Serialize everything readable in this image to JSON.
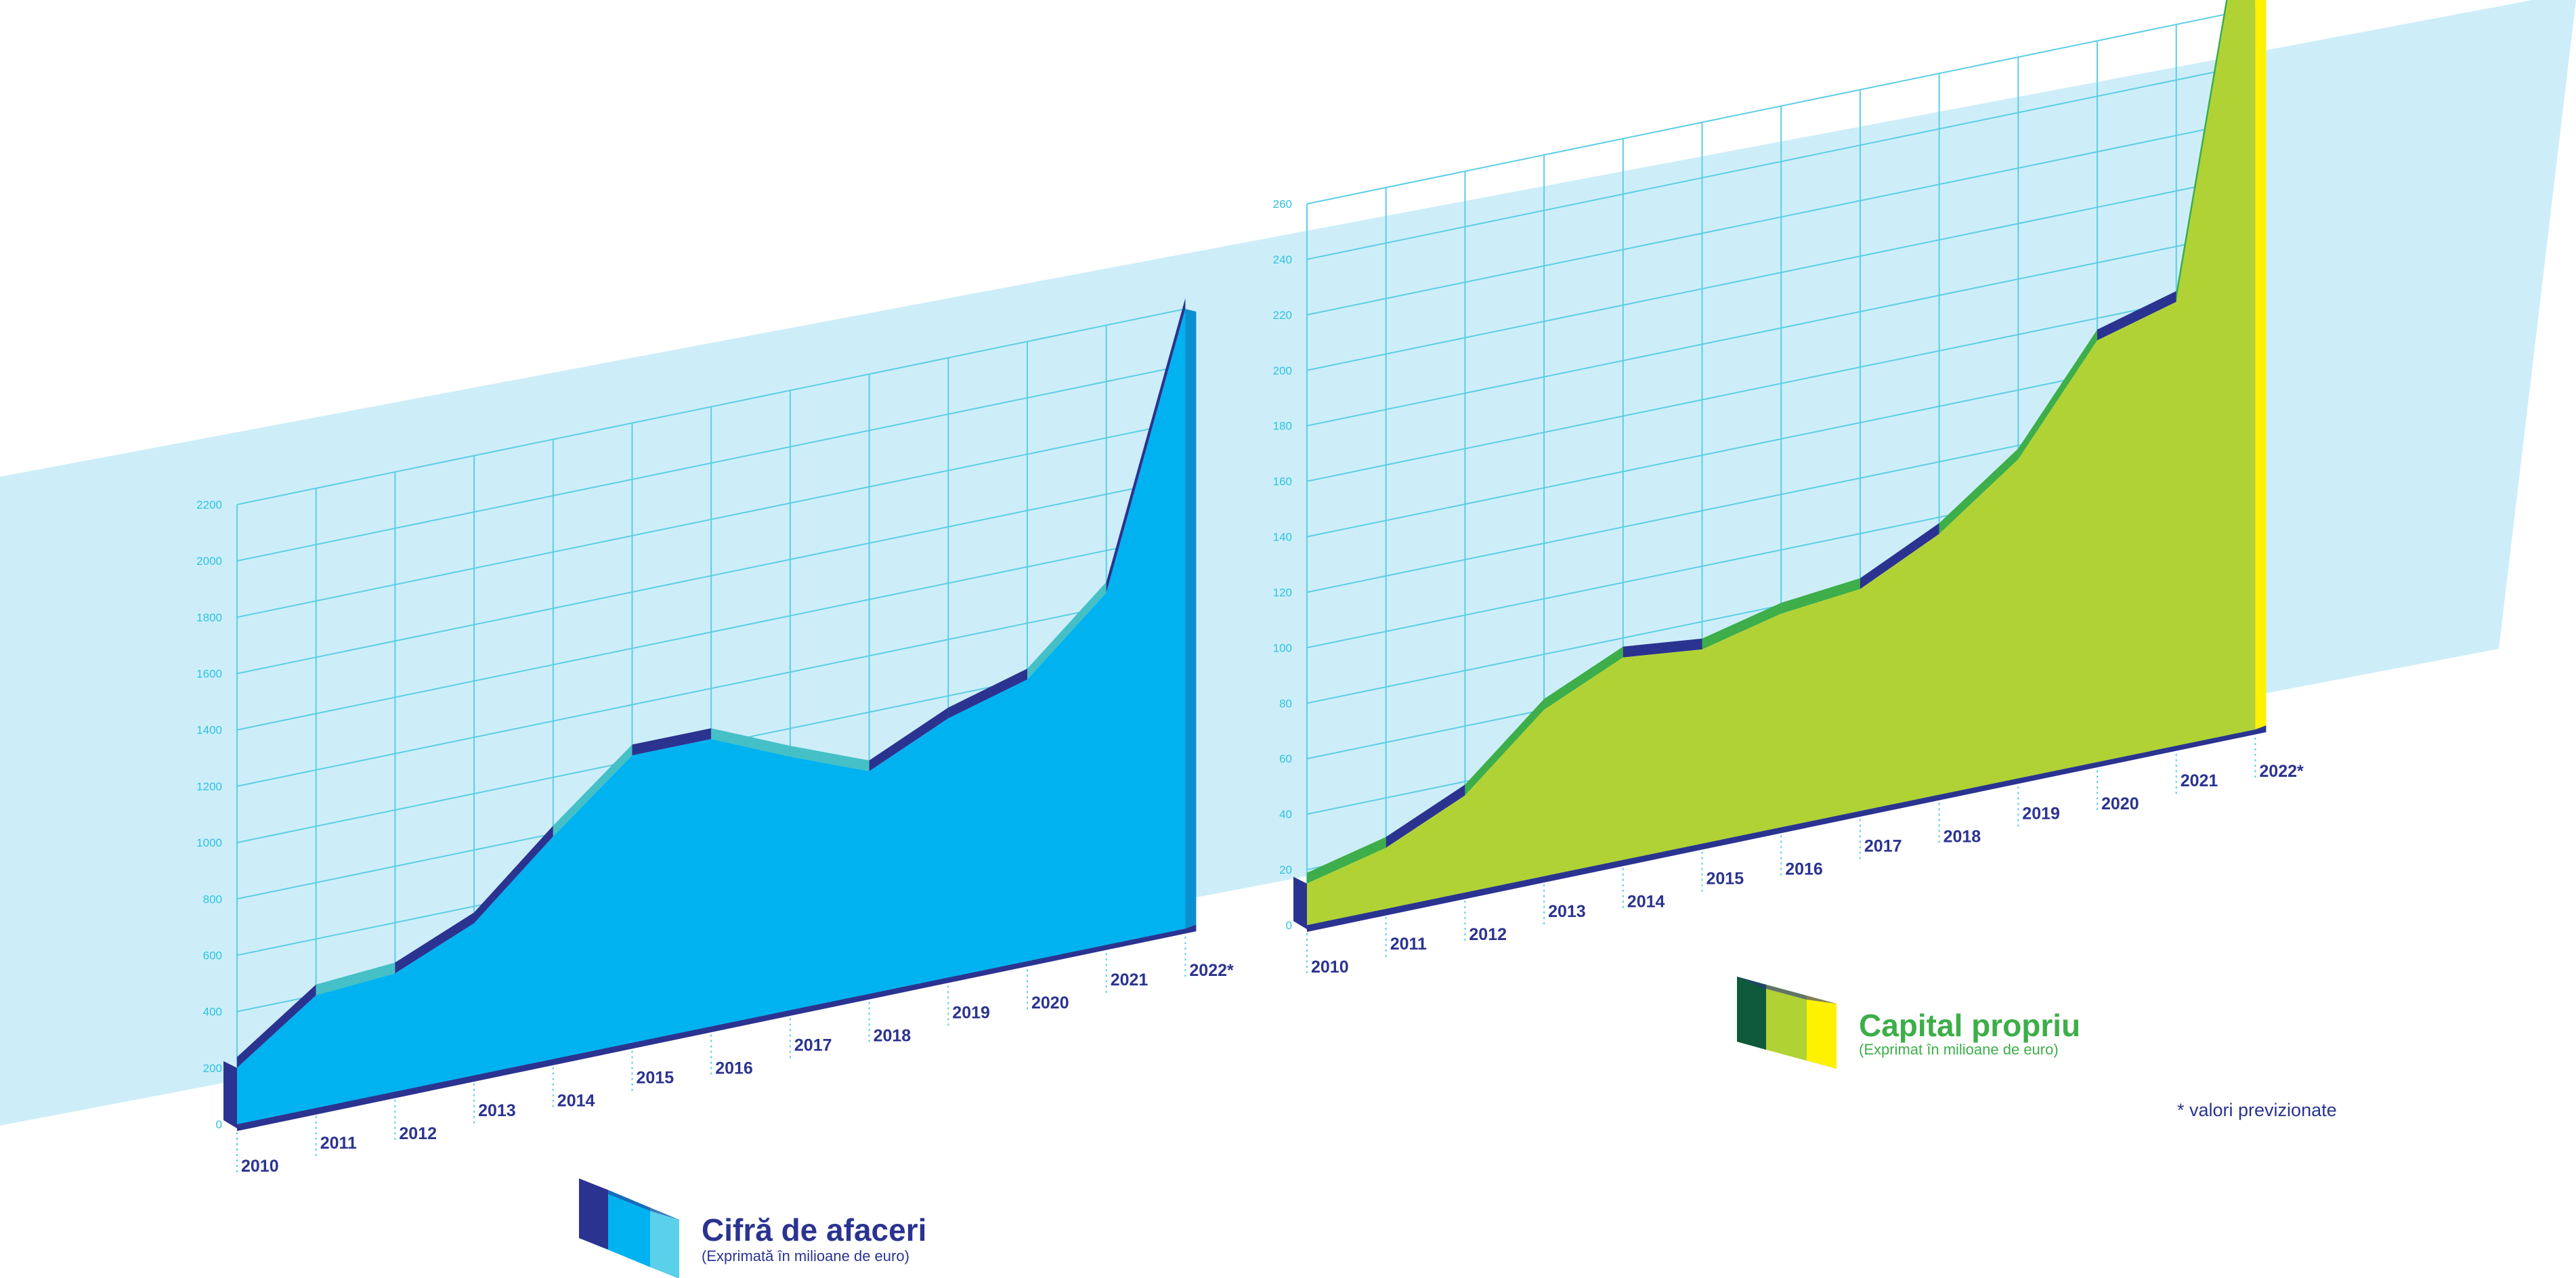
{
  "colors": {
    "band": "#cdeef9",
    "grid": "#5dcde6",
    "navy": "#2b3390",
    "blue_area": "#00b2ef",
    "blue_dark": "#0a8fd1",
    "teal": "#45c0c6",
    "lime_area": "#b1d235",
    "green": "#3dae49",
    "dark_green": "#0f5a3a",
    "yellow": "#fff200"
  },
  "note": "* valori previzionate",
  "chart_data": [
    {
      "type": "area",
      "title": "Cifră de afaceri",
      "subtitle": "(Exprimată în milioane de euro)",
      "x": [
        "2010",
        "2011",
        "2012",
        "2013",
        "2014",
        "2015",
        "2016",
        "2017",
        "2018",
        "2019",
        "2020",
        "2021",
        "2022*"
      ],
      "yticks": [
        "0",
        "200",
        "400",
        "600",
        "800",
        "1000",
        "1200",
        "1400",
        "1600",
        "1800",
        "2000",
        "2200"
      ],
      "ylim": [
        0,
        2200
      ],
      "series": [
        {
          "values": [
            200,
            400,
            420,
            540,
            790,
            1020,
            1020,
            900,
            790,
            920,
            1000,
            1250,
            2200
          ]
        }
      ]
    },
    {
      "type": "area",
      "title": "Capital propriu",
      "subtitle": "(Exprimat în milioane de euro)",
      "x": [
        "2010",
        "2011",
        "2012",
        "2013",
        "2014",
        "2015",
        "2016",
        "2017",
        "2018",
        "2019",
        "2020",
        "2021",
        "2022*"
      ],
      "yticks": [
        "0",
        "20",
        "40",
        "60",
        "80",
        "100",
        "120",
        "140",
        "160",
        "180",
        "200",
        "220",
        "240",
        "260"
      ],
      "ylim": [
        0,
        260
      ],
      "series": [
        {
          "values": [
            15,
            22,
            35,
            60,
            73,
            70,
            77,
            80,
            94,
            115,
            152,
            160,
            321
          ]
        }
      ]
    }
  ]
}
